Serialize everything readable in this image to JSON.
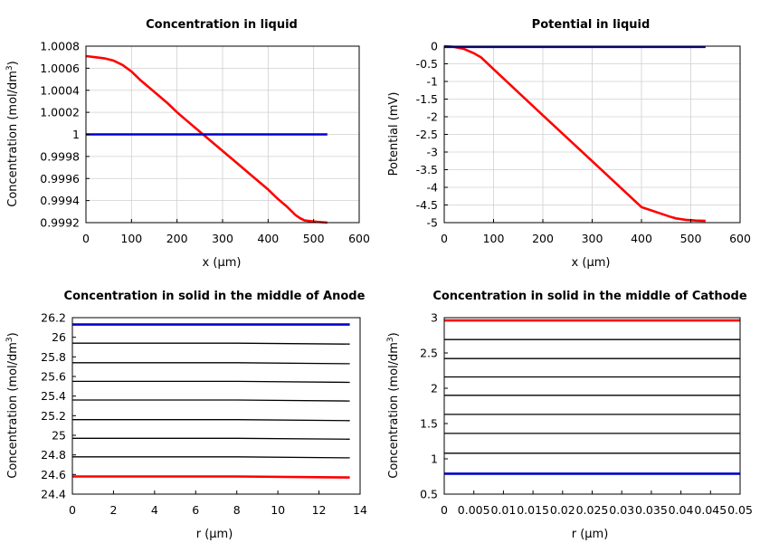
{
  "chart_data": [
    {
      "type": "line",
      "title": "Concentration in liquid",
      "xlabel": "x (µm)",
      "ylabel_main": "Concentration (mol/dm",
      "ylabel_sup": "3",
      "ylabel_tail": ")",
      "xlim": [
        0,
        600
      ],
      "ylim": [
        0.9992,
        1.0008
      ],
      "xticks": [
        0,
        100,
        200,
        300,
        400,
        500,
        600
      ],
      "xtick_labels": [
        "0",
        "100",
        "200",
        "300",
        "400",
        "500",
        "600"
      ],
      "yticks": [
        0.9992,
        0.9994,
        0.9996,
        0.9998,
        1.0,
        1.0002,
        1.0004,
        1.0006,
        1.0008
      ],
      "ytick_labels": [
        "0.9992",
        "0.9994",
        "0.9996",
        "0.9998",
        "1",
        "1.0002",
        "1.0004",
        "1.0006",
        "1.0008"
      ],
      "grid": true,
      "series": [
        {
          "color": "#ff0000",
          "x": [
            0,
            20,
            40,
            60,
            80,
            100,
            120,
            140,
            160,
            180,
            200,
            220,
            240,
            260,
            280,
            300,
            320,
            340,
            360,
            380,
            400,
            420,
            440,
            460,
            470,
            480,
            500,
            530
          ],
          "y": [
            1.00071,
            1.0007,
            1.00069,
            1.00067,
            1.00063,
            1.00057,
            1.00049,
            1.00042,
            1.00035,
            1.00028,
            1.0002,
            1.00013,
            1.00006,
            0.99999,
            0.99992,
            0.99985,
            0.99978,
            0.99971,
            0.99964,
            0.99957,
            0.9995,
            0.99942,
            0.99935,
            0.99927,
            0.99924,
            0.99922,
            0.99921,
            0.9992
          ]
        },
        {
          "color": "#0000cc",
          "x": [
            0,
            530
          ],
          "y": [
            1.0,
            1.0
          ]
        }
      ]
    },
    {
      "type": "line",
      "title": "Potential in liquid",
      "xlabel": "x (µm)",
      "ylabel_main": "Potential (mV)",
      "ylabel_sup": "",
      "ylabel_tail": "",
      "xlim": [
        0,
        600
      ],
      "ylim": [
        -5,
        0
      ],
      "xticks": [
        0,
        100,
        200,
        300,
        400,
        500,
        600
      ],
      "xtick_labels": [
        "0",
        "100",
        "200",
        "300",
        "400",
        "500",
        "600"
      ],
      "yticks": [
        -5,
        -4.5,
        -4,
        -3.5,
        -3,
        -2.5,
        -2,
        -1.5,
        -1,
        -0.5,
        0
      ],
      "ytick_labels": [
        "-5",
        "-4.5",
        "-4",
        "-3.5",
        "-3",
        "-2.5",
        "-2",
        "-1.5",
        "-1",
        "-0.5",
        "0"
      ],
      "grid": true,
      "series": [
        {
          "color": "#ff0000",
          "x": [
            0,
            20,
            40,
            60,
            75,
            100,
            200,
            300,
            400,
            460,
            470,
            490,
            510,
            530
          ],
          "y": [
            0,
            -0.02,
            -0.08,
            -0.2,
            -0.32,
            -0.65,
            -1.96,
            -3.26,
            -4.56,
            -4.84,
            -4.88,
            -4.92,
            -4.94,
            -4.95
          ]
        },
        {
          "color": "#0000cc",
          "x": [
            0,
            530
          ],
          "y": [
            -0.02,
            -0.02
          ]
        }
      ]
    },
    {
      "type": "line",
      "title": "Concentration in solid in the middle of Anode",
      "xlabel": "r (µm)",
      "ylabel_main": "Concentration (mol/dm",
      "ylabel_sup": "3",
      "ylabel_tail": ")",
      "xlim": [
        0,
        14
      ],
      "ylim": [
        24.4,
        26.2
      ],
      "xticks": [
        0,
        2,
        4,
        6,
        8,
        10,
        12,
        14
      ],
      "xtick_labels": [
        "0",
        "2",
        "4",
        "6",
        "8",
        "10",
        "12",
        "14"
      ],
      "yticks": [
        24.4,
        24.6,
        24.8,
        25.0,
        25.2,
        25.4,
        25.6,
        25.8,
        26.0,
        26.2
      ],
      "ytick_labels": [
        "24.4",
        "24.6",
        "24.8",
        "25",
        "25.2",
        "25.4",
        "25.6",
        "25.8",
        "26",
        "26.2"
      ],
      "grid": false,
      "series": [
        {
          "color": "#000000",
          "x": [
            0,
            8,
            13.5
          ],
          "y": [
            25.94,
            25.94,
            25.93
          ]
        },
        {
          "color": "#000000",
          "x": [
            0,
            8,
            13.5
          ],
          "y": [
            25.74,
            25.74,
            25.73
          ]
        },
        {
          "color": "#000000",
          "x": [
            0,
            8,
            13.5
          ],
          "y": [
            25.55,
            25.55,
            25.54
          ]
        },
        {
          "color": "#000000",
          "x": [
            0,
            8,
            13.5
          ],
          "y": [
            25.36,
            25.36,
            25.35
          ]
        },
        {
          "color": "#000000",
          "x": [
            0,
            8,
            13.5
          ],
          "y": [
            25.16,
            25.16,
            25.15
          ]
        },
        {
          "color": "#000000",
          "x": [
            0,
            8,
            13.5
          ],
          "y": [
            24.97,
            24.97,
            24.96
          ]
        },
        {
          "color": "#000000",
          "x": [
            0,
            8,
            13.5
          ],
          "y": [
            24.78,
            24.78,
            24.77
          ]
        },
        {
          "color": "#0000cc",
          "x": [
            0,
            13.5
          ],
          "y": [
            26.13,
            26.13
          ]
        },
        {
          "color": "#ff0000",
          "x": [
            0,
            8,
            13.5
          ],
          "y": [
            24.58,
            24.58,
            24.57
          ]
        }
      ]
    },
    {
      "type": "line",
      "title": "Concentration in solid in the middle of Cathode",
      "xlabel": "r (µm)",
      "ylabel_main": "Concentration (mol/dm",
      "ylabel_sup": "3",
      "ylabel_tail": ")",
      "xlim": [
        0,
        0.05
      ],
      "ylim": [
        0.5,
        3
      ],
      "xticks": [
        0,
        0.005,
        0.01,
        0.015,
        0.02,
        0.025,
        0.03,
        0.035,
        0.04,
        0.045,
        0.05
      ],
      "xtick_labels": [
        "0",
        "0.005",
        "0.01",
        "0.015",
        "0.02",
        "0.025",
        "0.03",
        "0.035",
        "0.04",
        "0.045",
        "0.05"
      ],
      "yticks": [
        0.5,
        1,
        1.5,
        2,
        2.5,
        3
      ],
      "ytick_labels": [
        "0.5",
        "1",
        "1.5",
        "2",
        "2.5",
        "3"
      ],
      "grid": false,
      "series": [
        {
          "color": "#000000",
          "x": [
            0,
            0.05
          ],
          "y": [
            2.69,
            2.69
          ]
        },
        {
          "color": "#000000",
          "x": [
            0,
            0.05
          ],
          "y": [
            2.42,
            2.42
          ]
        },
        {
          "color": "#000000",
          "x": [
            0,
            0.05
          ],
          "y": [
            2.16,
            2.16
          ]
        },
        {
          "color": "#000000",
          "x": [
            0,
            0.05
          ],
          "y": [
            1.9,
            1.9
          ]
        },
        {
          "color": "#000000",
          "x": [
            0,
            0.05
          ],
          "y": [
            1.63,
            1.63
          ]
        },
        {
          "color": "#000000",
          "x": [
            0,
            0.05
          ],
          "y": [
            1.36,
            1.36
          ]
        },
        {
          "color": "#000000",
          "x": [
            0,
            0.05
          ],
          "y": [
            1.08,
            1.08
          ]
        },
        {
          "color": "#ff0000",
          "x": [
            0,
            0.05
          ],
          "y": [
            2.96,
            2.96
          ]
        },
        {
          "color": "#0000cc",
          "x": [
            0,
            0.05
          ],
          "y": [
            0.79,
            0.79
          ]
        }
      ]
    }
  ]
}
